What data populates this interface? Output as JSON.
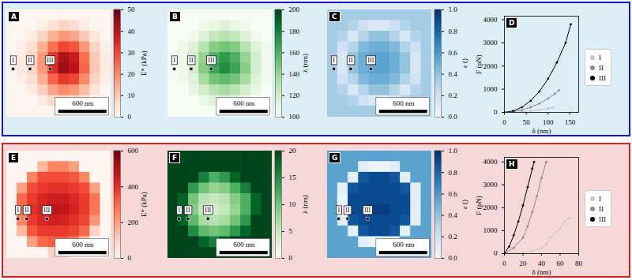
{
  "chart_data": [
    {
      "type": "heatmap",
      "panel": "A",
      "xlim": [
        0,
        1300
      ],
      "ylim": [
        0,
        1300
      ],
      "tick_labels": false,
      "color": "reds",
      "colorbar": {
        "label": "E* (kPa)",
        "range": [
          0,
          50
        ],
        "ticks": [
          0,
          10,
          20,
          30,
          40,
          50
        ]
      },
      "scale_bar": {
        "label": "600 nm",
        "length": 600
      },
      "markers": [
        {
          "label": "I",
          "x": 80,
          "y": 715
        },
        {
          "label": "II",
          "x": 290,
          "y": 715
        },
        {
          "label": "III",
          "x": 540,
          "y": 715
        }
      ],
      "cells": [
        [
          0,
          0,
          0,
          0,
          0,
          0,
          0,
          0,
          0,
          0
        ],
        [
          0,
          0,
          0,
          2,
          5,
          8,
          6,
          3,
          0,
          0
        ],
        [
          0,
          0,
          3,
          8,
          14,
          18,
          16,
          10,
          4,
          0
        ],
        [
          0,
          2,
          6,
          14,
          24,
          30,
          28,
          18,
          8,
          2
        ],
        [
          0,
          3,
          8,
          18,
          32,
          42,
          38,
          24,
          10,
          3
        ],
        [
          0,
          3,
          8,
          18,
          34,
          44,
          40,
          26,
          10,
          3
        ],
        [
          0,
          2,
          6,
          14,
          26,
          32,
          30,
          20,
          8,
          2
        ],
        [
          0,
          0,
          3,
          9,
          16,
          20,
          18,
          12,
          5,
          0
        ],
        [
          0,
          0,
          0,
          3,
          7,
          9,
          8,
          5,
          0,
          0
        ],
        [
          0,
          0,
          0,
          0,
          0,
          0,
          0,
          0,
          0,
          0
        ]
      ]
    },
    {
      "type": "heatmap",
      "panel": "B",
      "xlim": [
        0,
        1300
      ],
      "ylim": [
        0,
        1300
      ],
      "tick_labels": false,
      "color": "greens",
      "colorbar": {
        "label": "λ (nm)",
        "range": [
          100,
          200
        ],
        "ticks": [
          100,
          120,
          140,
          160,
          180,
          200
        ]
      },
      "scale_bar": {
        "label": "600 nm",
        "length": 600
      },
      "markers": [
        {
          "label": "I",
          "x": 80,
          "y": 715
        },
        {
          "label": "II",
          "x": 290,
          "y": 715
        },
        {
          "label": "III",
          "x": 540,
          "y": 715
        }
      ],
      "cells": [
        [
          100,
          100,
          100,
          100,
          100,
          100,
          100,
          100,
          100,
          100
        ],
        [
          100,
          100,
          100,
          105,
          110,
          115,
          110,
          105,
          100,
          100
        ],
        [
          100,
          100,
          105,
          115,
          125,
          130,
          125,
          115,
          105,
          100
        ],
        [
          100,
          105,
          115,
          130,
          145,
          150,
          145,
          130,
          115,
          105
        ],
        [
          100,
          105,
          120,
          140,
          160,
          170,
          160,
          140,
          120,
          105
        ],
        [
          100,
          105,
          120,
          145,
          165,
          175,
          165,
          145,
          120,
          105
        ],
        [
          100,
          105,
          115,
          135,
          150,
          155,
          150,
          135,
          115,
          105
        ],
        [
          100,
          100,
          110,
          120,
          130,
          135,
          130,
          120,
          110,
          100
        ],
        [
          100,
          100,
          100,
          108,
          115,
          118,
          115,
          108,
          100,
          100
        ],
        [
          100,
          100,
          100,
          100,
          100,
          100,
          100,
          100,
          100,
          100
        ]
      ]
    },
    {
      "type": "heatmap",
      "panel": "C",
      "xlim": [
        0,
        1300
      ],
      "ylim": [
        0,
        1300
      ],
      "tick_labels": false,
      "color": "blues",
      "colorbar": {
        "label": "ε ()",
        "range": [
          0,
          1
        ],
        "ticks": [
          {
            "value": 0,
            "label": "0.0"
          },
          {
            "value": 0.2,
            "label": "0.2"
          },
          {
            "value": 0.4,
            "label": "0.4"
          },
          {
            "value": 0.6,
            "label": "0.6"
          },
          {
            "value": 0.8,
            "label": "0.8"
          },
          {
            "value": 1,
            "label": "1.0"
          }
        ]
      },
      "scale_bar": {
        "label": "600 nm",
        "length": 600
      },
      "markers": [
        {
          "label": "I",
          "x": 80,
          "y": 715
        },
        {
          "label": "II",
          "x": 290,
          "y": 715
        },
        {
          "label": "III",
          "x": 540,
          "y": 715
        }
      ],
      "cells": [
        [
          0.35,
          0.35,
          0.35,
          0.35,
          0.35,
          0.35,
          0.35,
          0.35,
          0.35,
          0.35
        ],
        [
          0.35,
          0.35,
          0.3,
          0.2,
          0.15,
          0.15,
          0.2,
          0.3,
          0.35,
          0.35
        ],
        [
          0.35,
          0.3,
          0.15,
          0.3,
          0.4,
          0.4,
          0.3,
          0.15,
          0.3,
          0.35
        ],
        [
          0.35,
          0.2,
          0.3,
          0.45,
          0.5,
          0.5,
          0.45,
          0.3,
          0.2,
          0.35
        ],
        [
          0.35,
          0.15,
          0.4,
          0.5,
          0.55,
          0.55,
          0.5,
          0.4,
          0.15,
          0.35
        ],
        [
          0.35,
          0.15,
          0.4,
          0.5,
          0.55,
          0.55,
          0.5,
          0.4,
          0.15,
          0.35
        ],
        [
          0.35,
          0.2,
          0.3,
          0.45,
          0.5,
          0.5,
          0.45,
          0.3,
          0.2,
          0.35
        ],
        [
          0.35,
          0.3,
          0.15,
          0.3,
          0.4,
          0.4,
          0.3,
          0.15,
          0.3,
          0.35
        ],
        [
          0.35,
          0.35,
          0.3,
          0.2,
          0.15,
          0.15,
          0.2,
          0.3,
          0.35,
          0.35
        ],
        [
          0.35,
          0.35,
          0.35,
          0.35,
          0.35,
          0.35,
          0.35,
          0.35,
          0.35,
          0.35
        ]
      ]
    },
    {
      "type": "line",
      "panel": "D",
      "xlabel": "δ (nm)",
      "ylabel": "F (pN)",
      "xlim": [
        0,
        170
      ],
      "ylim": [
        0,
        4150
      ],
      "xticks": [
        0,
        50,
        100,
        150
      ],
      "yticks": [
        0,
        1000,
        2000,
        3000,
        4000
      ],
      "legend": "right",
      "series": [
        {
          "name": "I",
          "color": "#c8c8c8",
          "marker": "circle",
          "x": [
            0,
            20,
            40,
            60,
            80,
            100,
            110
          ],
          "values": [
            0,
            10,
            30,
            60,
            110,
            170,
            200
          ]
        },
        {
          "name": "II",
          "color": "#8c8c8c",
          "marker": "circle",
          "x": [
            0,
            20,
            40,
            60,
            80,
            100,
            115,
            125
          ],
          "values": [
            0,
            30,
            100,
            220,
            380,
            600,
            800,
            950
          ]
        },
        {
          "name": "III",
          "color": "#000000",
          "marker": "circle",
          "x": [
            0,
            20,
            40,
            60,
            80,
            100,
            120,
            140,
            152
          ],
          "values": [
            0,
            60,
            220,
            500,
            900,
            1450,
            2150,
            3000,
            3800
          ]
        }
      ]
    },
    {
      "type": "heatmap",
      "panel": "E",
      "xlim": [
        0,
        1300
      ],
      "ylim": [
        0,
        1300
      ],
      "tick_labels": false,
      "color": "reds",
      "colorbar": {
        "label": "E* (kPa)",
        "range": [
          0,
          600
        ],
        "ticks": [
          0,
          200,
          400,
          600
        ]
      },
      "scale_bar": {
        "label": "600 nm",
        "length": 600
      },
      "markers": [
        {
          "label": "I",
          "x": 140,
          "y": 820
        },
        {
          "label": "II",
          "x": 250,
          "y": 820
        },
        {
          "label": "III",
          "x": 500,
          "y": 820
        }
      ],
      "cells": [
        [
          0,
          0,
          0,
          0,
          0,
          0,
          0,
          0,
          0,
          0
        ],
        [
          0,
          0,
          0,
          150,
          250,
          250,
          200,
          0,
          0,
          0
        ],
        [
          0,
          0,
          250,
          350,
          350,
          350,
          330,
          250,
          0,
          0
        ],
        [
          0,
          200,
          350,
          380,
          400,
          400,
          380,
          350,
          200,
          0
        ],
        [
          0,
          300,
          380,
          420,
          450,
          450,
          420,
          380,
          280,
          0
        ],
        [
          0,
          300,
          400,
          430,
          480,
          470,
          430,
          380,
          280,
          0
        ],
        [
          0,
          250,
          380,
          420,
          440,
          430,
          400,
          360,
          220,
          0
        ],
        [
          0,
          150,
          330,
          380,
          380,
          380,
          360,
          300,
          100,
          0
        ],
        [
          0,
          0,
          200,
          300,
          320,
          320,
          280,
          150,
          0,
          0
        ],
        [
          0,
          0,
          0,
          0,
          100,
          100,
          0,
          0,
          0,
          0
        ]
      ]
    },
    {
      "type": "heatmap",
      "panel": "F",
      "xlim": [
        0,
        1300
      ],
      "ylim": [
        0,
        1300
      ],
      "tick_labels": false,
      "color": "greens",
      "colorbar": {
        "label": "λ (nm)",
        "range": [
          0,
          20
        ],
        "ticks": [
          0,
          5,
          10,
          15,
          20
        ]
      },
      "scale_bar": {
        "label": "600 nm",
        "length": 600
      },
      "markers": [
        {
          "label": "I",
          "x": 140,
          "y": 820
        },
        {
          "label": "II",
          "x": 250,
          "y": 820
        },
        {
          "label": "III",
          "x": 500,
          "y": 820
        }
      ],
      "cells": [
        [
          20,
          20,
          20,
          20,
          20,
          20,
          20,
          20,
          20,
          20
        ],
        [
          20,
          20,
          20,
          20,
          20,
          20,
          20,
          20,
          20,
          20
        ],
        [
          20,
          20,
          20,
          16,
          12,
          14,
          18,
          20,
          20,
          20
        ],
        [
          20,
          20,
          14,
          10,
          8,
          9,
          12,
          16,
          20,
          20
        ],
        [
          20,
          18,
          10,
          6,
          5,
          6,
          9,
          12,
          18,
          20
        ],
        [
          20,
          18,
          9,
          5,
          4,
          5,
          8,
          12,
          18,
          20
        ],
        [
          20,
          18,
          11,
          7,
          6,
          7,
          10,
          14,
          20,
          20
        ],
        [
          20,
          20,
          15,
          11,
          10,
          11,
          14,
          18,
          20,
          20
        ],
        [
          20,
          20,
          20,
          18,
          16,
          18,
          20,
          20,
          20,
          20
        ],
        [
          20,
          20,
          20,
          20,
          20,
          20,
          20,
          20,
          20,
          20
        ]
      ]
    },
    {
      "type": "heatmap",
      "panel": "G",
      "xlim": [
        0,
        1300
      ],
      "ylim": [
        0,
        1300
      ],
      "tick_labels": false,
      "color": "blues",
      "colorbar": {
        "label": "ε ()",
        "range": [
          0,
          1
        ],
        "ticks": [
          {
            "value": 0,
            "label": "0.0"
          },
          {
            "value": 0.2,
            "label": "0.2"
          },
          {
            "value": 0.4,
            "label": "0.4"
          },
          {
            "value": 0.6,
            "label": "0.6"
          },
          {
            "value": 0.8,
            "label": "0.8"
          },
          {
            "value": 1,
            "label": "1.0"
          }
        ]
      },
      "scale_bar": {
        "label": "600 nm",
        "length": 600
      },
      "markers": [
        {
          "label": "I",
          "x": 140,
          "y": 820
        },
        {
          "label": "II",
          "x": 250,
          "y": 820
        },
        {
          "label": "III",
          "x": 500,
          "y": 820
        }
      ],
      "cells": [
        [
          0.55,
          0.55,
          0.55,
          0.55,
          0.55,
          0.55,
          0.55,
          0.55,
          0.55,
          0.55
        ],
        [
          0.55,
          0.55,
          0.55,
          0.1,
          0.05,
          0.05,
          0.1,
          0.55,
          0.55,
          0.55
        ],
        [
          0.55,
          0.55,
          0.1,
          0.85,
          0.9,
          0.9,
          0.85,
          0.1,
          0.55,
          0.55
        ],
        [
          0.55,
          0.1,
          0.85,
          0.9,
          0.9,
          0.9,
          0.9,
          0.85,
          0.1,
          0.55
        ],
        [
          0.55,
          0.05,
          0.9,
          0.9,
          0.9,
          0.9,
          0.9,
          0.9,
          0.1,
          0.55
        ],
        [
          0.55,
          0.05,
          0.9,
          0.9,
          0.95,
          0.95,
          0.9,
          0.9,
          0.1,
          0.55
        ],
        [
          0.55,
          0.1,
          0.85,
          0.9,
          0.9,
          0.9,
          0.9,
          0.85,
          0.1,
          0.55
        ],
        [
          0.55,
          0.55,
          0.1,
          0.85,
          0.9,
          0.9,
          0.85,
          0.1,
          0.55,
          0.55
        ],
        [
          0.55,
          0.55,
          0.55,
          0.1,
          0.05,
          0.05,
          0.1,
          0.55,
          0.55,
          0.55
        ],
        [
          0.55,
          0.55,
          0.55,
          0.55,
          0.55,
          0.55,
          0.55,
          0.55,
          0.55,
          0.55
        ]
      ]
    },
    {
      "type": "line",
      "panel": "H",
      "xlabel": "δ (nm)",
      "ylabel": "F (pN)",
      "xlim": [
        0,
        80
      ],
      "ylim": [
        0,
        4200
      ],
      "xticks": [
        0,
        20,
        40,
        60,
        80
      ],
      "yticks": [
        0,
        1000,
        2000,
        3000,
        4000
      ],
      "legend": "right",
      "series": [
        {
          "name": "I",
          "color": "#c8c8c8",
          "marker": "circle",
          "x": [
            0,
            20,
            30,
            40,
            45,
            50,
            60,
            65,
            70
          ],
          "values": [
            0,
            50,
            100,
            250,
            400,
            700,
            1100,
            1400,
            1550
          ]
        },
        {
          "name": "II",
          "color": "#8c8c8c",
          "marker": "circle",
          "x": [
            0,
            10,
            20,
            25,
            30,
            35,
            40,
            45
          ],
          "values": [
            0,
            250,
            700,
            1200,
            1800,
            2500,
            3300,
            4000
          ]
        },
        {
          "name": "III",
          "color": "#000000",
          "marker": "circle",
          "x": [
            0,
            5,
            10,
            15,
            20,
            25,
            30,
            32
          ],
          "values": [
            0,
            300,
            800,
            1400,
            2100,
            2900,
            3700,
            4000
          ]
        }
      ]
    }
  ]
}
